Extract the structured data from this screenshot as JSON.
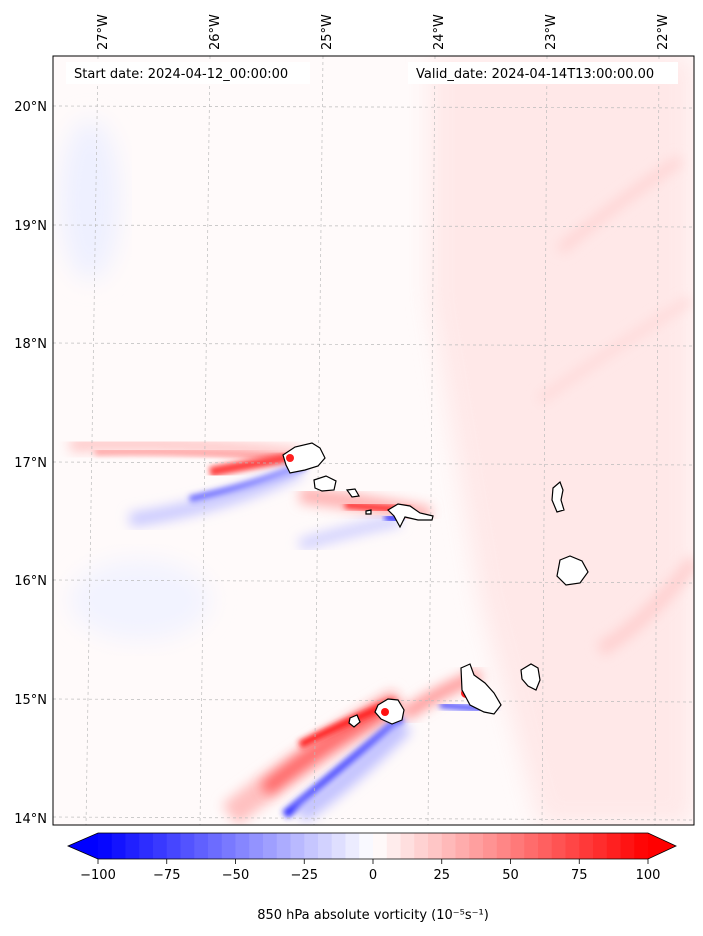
{
  "header": {
    "start_date": "Start date: 2024-04-12_00:00:00",
    "valid_date": "Valid_date: 2024-04-14T13:00:00.00"
  },
  "map": {
    "projection": "PlateCarree",
    "lon_range": [
      -27.35,
      -21.7
    ],
    "lat_range": [
      13.95,
      20.45
    ],
    "grid": true,
    "lon_ticks": [
      "27°W",
      "26°W",
      "25°W",
      "24°W",
      "23°W",
      "22°W"
    ],
    "lat_ticks": [
      "20°N",
      "19°N",
      "18°N",
      "17°N",
      "16°N",
      "15°N",
      "14°N"
    ],
    "colormap": "bwr"
  },
  "colorbar": {
    "ticks": [
      "−100",
      "−75",
      "−50",
      "−25",
      "0",
      "25",
      "50",
      "75",
      "100"
    ],
    "label": "850 hPa absolute vorticity (10⁻⁵s⁻¹)",
    "min": -100,
    "max": 100,
    "extend": "both",
    "color_min": "#0000ff",
    "color_mid": "#ffffff",
    "color_max": "#ff0000"
  },
  "chart_data": {
    "type": "heatmap",
    "title": "",
    "variable": "850 hPa absolute vorticity",
    "units": "10⁻⁵s⁻¹",
    "range": [
      -100,
      100
    ],
    "features": [
      {
        "kind": "positive band",
        "from": [
          -27.2,
          17.1
        ],
        "to": [
          -24.9,
          17.0
        ],
        "peak": 80
      },
      {
        "kind": "negative band",
        "from": [
          -26.4,
          16.7
        ],
        "to": [
          -24.9,
          16.9
        ],
        "peak": -90
      },
      {
        "kind": "positive band",
        "from": [
          -25.0,
          16.6
        ],
        "to": [
          -24.0,
          16.6
        ],
        "peak": 85
      },
      {
        "kind": "negative band",
        "from": [
          -24.6,
          16.45
        ],
        "to": [
          -24.2,
          16.55
        ],
        "peak": -80
      },
      {
        "kind": "positive band",
        "from": [
          -25.5,
          14.2
        ],
        "to": [
          -23.6,
          15.1
        ],
        "peak": 90
      },
      {
        "kind": "negative band",
        "from": [
          -25.3,
          14.0
        ],
        "to": [
          -24.3,
          14.8
        ],
        "peak": -95
      },
      {
        "kind": "positive band",
        "from": [
          -24.3,
          14.9
        ],
        "to": [
          -23.7,
          15.2
        ],
        "peak": 60
      }
    ]
  }
}
